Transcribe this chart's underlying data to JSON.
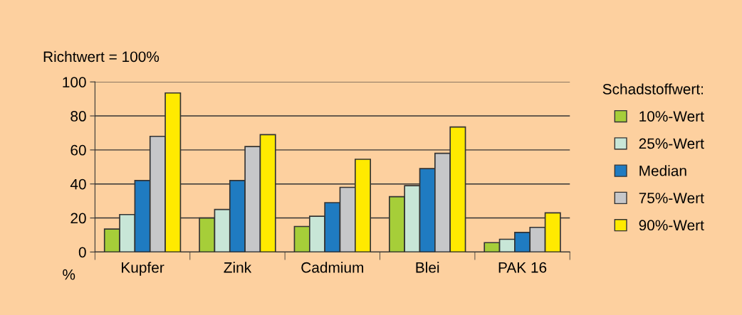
{
  "chart_data": {
    "type": "bar",
    "ylabel": "Richtwert = 100%",
    "legend_title": "Schadstoffwert:",
    "annotations": [
      "%"
    ],
    "categories": [
      "Kupfer",
      "Zink",
      "Cadmium",
      "Blei",
      "PAK 16"
    ],
    "series": [
      {
        "name": "10%-Wert",
        "color": "#a6ce39",
        "values": [
          13.5,
          20,
          15,
          32.5,
          5.5
        ]
      },
      {
        "name": "25%-Wert",
        "color": "#c8e6d7",
        "values": [
          22,
          25,
          21,
          39,
          7.5
        ]
      },
      {
        "name": "Median",
        "color": "#1f7bc1",
        "values": [
          42,
          42,
          29,
          49,
          11.5
        ]
      },
      {
        "name": "75%-Wert",
        "color": "#c6c7c9",
        "values": [
          68,
          62,
          38,
          58,
          14.5
        ]
      },
      {
        "name": "90%-Wert",
        "color": "#ffea00",
        "values": [
          93.5,
          69,
          54.5,
          73.5,
          23
        ]
      }
    ],
    "ylim": [
      0,
      100
    ],
    "yticks": [
      0,
      20,
      40,
      60,
      80,
      100
    ],
    "grid": "y",
    "legend": "right"
  }
}
